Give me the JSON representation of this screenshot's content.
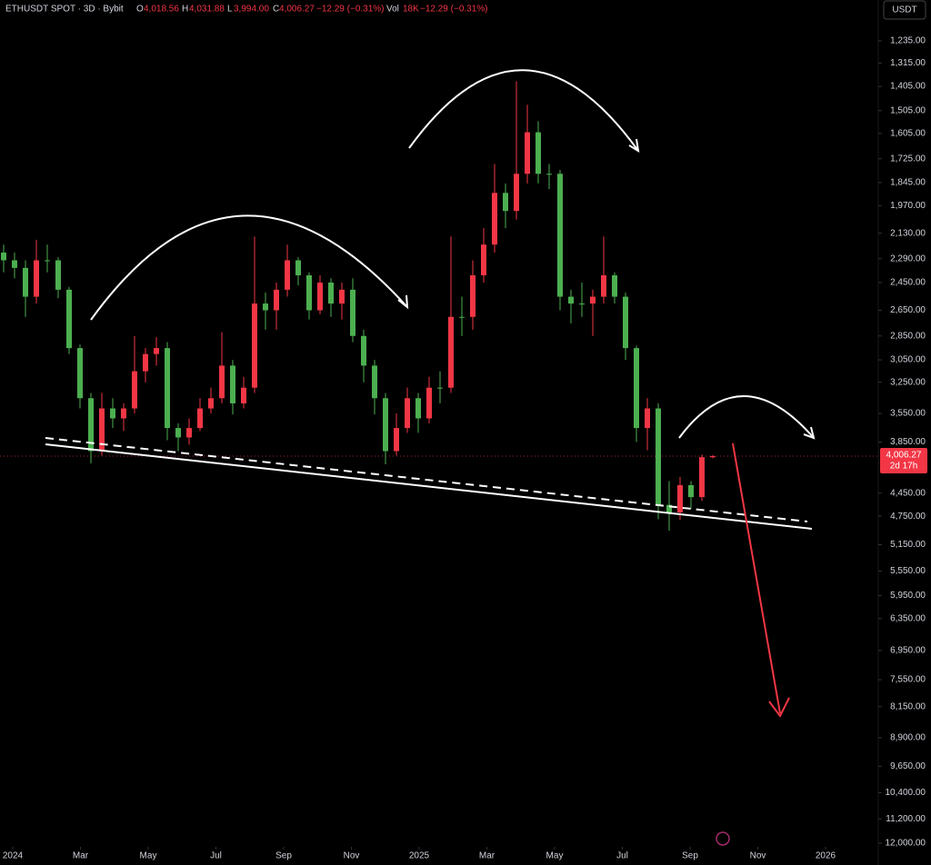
{
  "chart_data": {
    "type": "candlestick",
    "title": "ETHUSDT SPOT · 3D · Bybit",
    "ohlc_header": {
      "o_label": "O",
      "o": "4,018.56",
      "h_label": "H",
      "h": "4,031.88",
      "l_label": "L",
      "l": "3,994.00",
      "c_label": "C",
      "c": "4,006.27",
      "change": "−12.29 (−0.31%)",
      "vol_label": "Vol",
      "vol": "18K",
      "vol_change": "−12.29 (−0.31%)"
    },
    "currency": "USDT",
    "last_price_label": "4,006.27",
    "countdown": "2d 17h",
    "up_color": "#4caf50",
    "down_color": "#f23645",
    "y_scale": "log",
    "y_inverted": true,
    "grid": false,
    "categories": [
      null,
      null,
      null,
      null,
      null,
      null,
      null,
      null,
      null,
      null,
      null,
      null,
      null,
      null,
      null,
      null,
      null,
      null,
      null,
      null,
      null,
      null,
      null,
      null,
      null,
      null,
      null,
      null,
      null,
      null,
      null,
      null,
      null,
      null,
      null,
      null,
      null,
      null,
      null,
      null,
      null,
      null,
      null,
      null,
      null,
      null,
      null,
      null,
      null,
      null,
      null,
      null,
      null,
      null,
      null,
      null,
      null,
      null,
      null,
      null,
      null,
      null,
      null,
      null,
      null,
      null
    ],
    "open": [
      2250,
      2300,
      2350,
      2550,
      2300,
      2300,
      2500,
      2950,
      3400,
      3950,
      3500,
      3600,
      3500,
      3150,
      3000,
      2950,
      3700,
      3800,
      3700,
      3500,
      3400,
      3100,
      3450,
      3300,
      2600,
      2650,
      2500,
      2300,
      2400,
      2650,
      2450,
      2600,
      2500,
      2850,
      3100,
      3400,
      3950,
      3700,
      3400,
      3600,
      3300,
      3300,
      2700,
      2700,
      2400,
      2200,
      1900,
      2000,
      1800,
      1600,
      1800,
      1800,
      2550,
      2600,
      2600,
      2550,
      2400,
      2550,
      2950,
      3700,
      3500,
      4600,
      4700,
      4350,
      4500,
      4018.56
    ],
    "high": [
      2380,
      2420,
      2700,
      2600,
      2380,
      2560,
      3000,
      3500,
      4090,
      4000,
      3700,
      3730,
      3550,
      3250,
      3100,
      3830,
      3950,
      3880,
      3730,
      3550,
      3450,
      3560,
      3500,
      3350,
      2800,
      2800,
      2550,
      2470,
      2720,
      2680,
      2700,
      2720,
      2900,
      3250,
      3560,
      4100,
      4000,
      3750,
      3750,
      3650,
      3450,
      3350,
      2850,
      2800,
      2450,
      2250,
      2100,
      2050,
      1850,
      1850,
      1880,
      2650,
      2750,
      2700,
      2850,
      2600,
      2600,
      3050,
      3850,
      3940,
      4790,
      4950,
      4800,
      4650,
      4550,
      4031.88
    ],
    "low": [
      2200,
      2250,
      2300,
      2170,
      2200,
      2280,
      2480,
      2920,
      3350,
      3350,
      3400,
      3450,
      2850,
      2950,
      2860,
      2900,
      3650,
      3600,
      3400,
      3300,
      2820,
      3050,
      3200,
      2150,
      2520,
      2450,
      2200,
      2280,
      2380,
      2400,
      2420,
      2450,
      2420,
      2800,
      3050,
      3350,
      3550,
      3300,
      3350,
      3200,
      3150,
      2150,
      2550,
      2300,
      2100,
      1750,
      1850,
      1385,
      1480,
      1550,
      1750,
      1780,
      2500,
      2450,
      2500,
      2150,
      2380,
      2520,
      2930,
      3400,
      3450,
      4300,
      4250,
      4300,
      3990,
      3994
    ],
    "close": [
      2300,
      2350,
      2550,
      2300,
      2300,
      2500,
      2950,
      3400,
      3950,
      3500,
      3600,
      3500,
      3150,
      3000,
      2950,
      3700,
      3800,
      3700,
      3500,
      3400,
      3100,
      3450,
      3300,
      2600,
      2650,
      2500,
      2300,
      2400,
      2650,
      2450,
      2600,
      2500,
      2850,
      3100,
      3400,
      3950,
      3700,
      3400,
      3600,
      3300,
      3300,
      2700,
      2700,
      2400,
      2200,
      1900,
      2000,
      1800,
      1600,
      1800,
      1800,
      2550,
      2600,
      2600,
      2550,
      2400,
      2550,
      2950,
      3700,
      3500,
      4600,
      4700,
      4350,
      4500,
      4018.56,
      4006.27
    ],
    "ylim": [
      1235,
      12000
    ],
    "yticks": [
      {
        "value": 1235,
        "label": "1,235.00"
      },
      {
        "value": 1315,
        "label": "1,315.00"
      },
      {
        "value": 1405,
        "label": "1,405.00"
      },
      {
        "value": 1505,
        "label": "1,505.00"
      },
      {
        "value": 1605,
        "label": "1,605.00"
      },
      {
        "value": 1725,
        "label": "1,725.00"
      },
      {
        "value": 1845,
        "label": "1,845.00"
      },
      {
        "value": 1970,
        "label": "1,970.00"
      },
      {
        "value": 2130,
        "label": "2,130.00"
      },
      {
        "value": 2290,
        "label": "2,290.00"
      },
      {
        "value": 2450,
        "label": "2,450.00"
      },
      {
        "value": 2650,
        "label": "2,650.00"
      },
      {
        "value": 2850,
        "label": "2,850.00"
      },
      {
        "value": 3050,
        "label": "3,050.00"
      },
      {
        "value": 3250,
        "label": "3,250.00"
      },
      {
        "value": 3550,
        "label": "3,550.00"
      },
      {
        "value": 3850,
        "label": "3,850.00"
      },
      {
        "value": 4450,
        "label": "4,450.00"
      },
      {
        "value": 4750,
        "label": "4,750.00"
      },
      {
        "value": 5150,
        "label": "5,150.00"
      },
      {
        "value": 5550,
        "label": "5,550.00"
      },
      {
        "value": 5950,
        "label": "5,950.00"
      },
      {
        "value": 6350,
        "label": "6,350.00"
      },
      {
        "value": 6950,
        "label": "6,950.00"
      },
      {
        "value": 7550,
        "label": "7,550.00"
      },
      {
        "value": 8150,
        "label": "8,150.00"
      },
      {
        "value": 8900,
        "label": "8,900.00"
      },
      {
        "value": 9650,
        "label": "9,650.00"
      },
      {
        "value": 10400,
        "label": "10,400.00"
      },
      {
        "value": 11200,
        "label": "11,200.00"
      },
      {
        "value": 12000,
        "label": "12,000.00"
      }
    ],
    "xlim": [
      "2024-01",
      "2026-01"
    ],
    "xticks": [
      {
        "value": "2024-01",
        "label": "2024"
      },
      {
        "value": "2024-03",
        "label": "Mar"
      },
      {
        "value": "2024-05",
        "label": "May"
      },
      {
        "value": "2024-07",
        "label": "Jul"
      },
      {
        "value": "2024-09",
        "label": "Sep"
      },
      {
        "value": "2024-11",
        "label": "Nov"
      },
      {
        "value": "2025-01",
        "label": "2025"
      },
      {
        "value": "2025-03",
        "label": "Mar"
      },
      {
        "value": "2025-05",
        "label": "May"
      },
      {
        "value": "2025-07",
        "label": "Jul"
      },
      {
        "value": "2025-09",
        "label": "Sep"
      },
      {
        "value": "2025-11",
        "label": "Nov"
      },
      {
        "value": "2026-01",
        "label": "2026"
      }
    ]
  }
}
